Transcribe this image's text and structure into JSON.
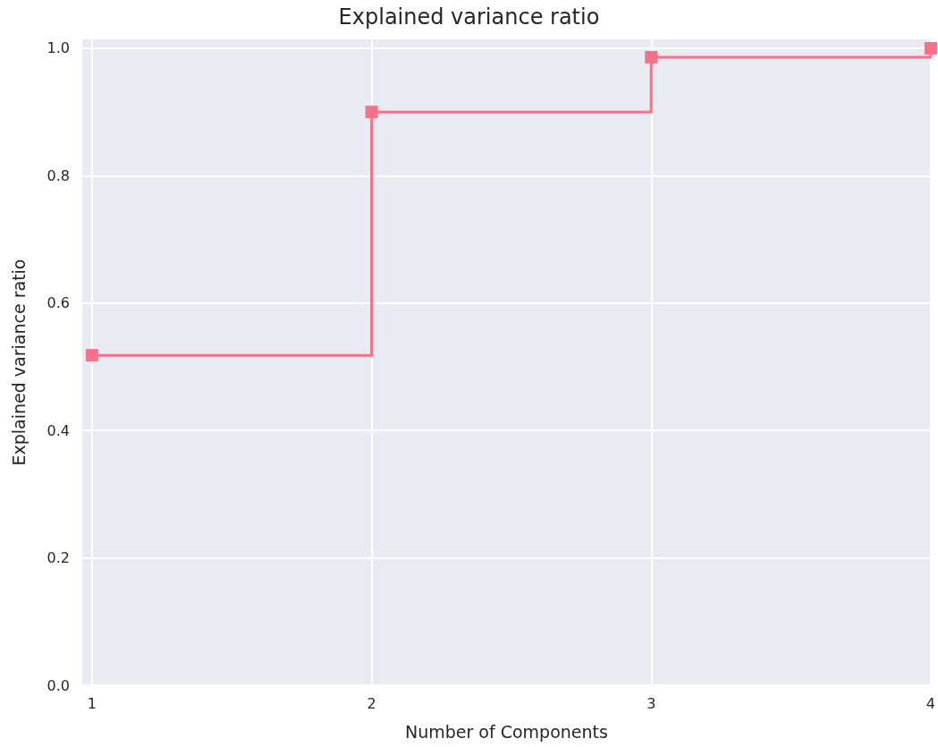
{
  "chart_data": {
    "type": "step",
    "title": "Explained variance ratio",
    "xlabel": "Number of Components",
    "ylabel": "Explained variance ratio",
    "x": [
      1,
      2,
      3,
      4
    ],
    "series": [
      {
        "color": "#f77189",
        "values": [
          0.518,
          0.9,
          0.986,
          1.0
        ]
      }
    ],
    "xlim": [
      0.965,
      4
    ],
    "xticks": [
      1,
      2,
      3,
      4
    ],
    "ylim": [
      0,
      1.014
    ],
    "yticks": [
      {
        "value": 0,
        "label": "0.0"
      },
      0.2,
      0.4,
      0.6,
      0.8,
      {
        "value": 1,
        "label": "1.0"
      }
    ],
    "grid": true,
    "marker": "square",
    "line_style": "solid"
  }
}
